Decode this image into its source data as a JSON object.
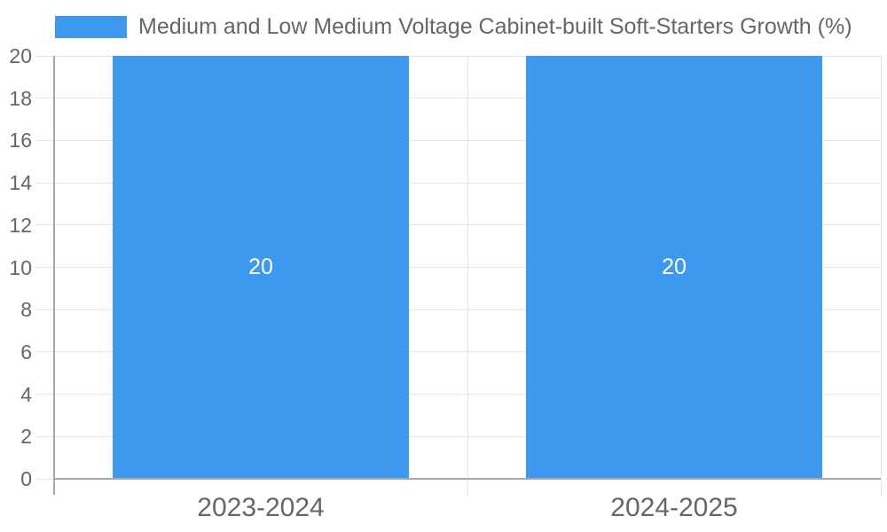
{
  "chart_data": {
    "type": "bar",
    "title": "",
    "legend": {
      "label": "Medium and Low Medium Voltage Cabinet-built Soft-Starters Growth (%)",
      "position": "top-left"
    },
    "categories": [
      "2023-2024",
      "2024-2025"
    ],
    "series": [
      {
        "name": "Medium and Low Medium Voltage Cabinet-built Soft-Starters Growth (%)",
        "values": [
          20,
          20
        ]
      }
    ],
    "value_labels": [
      "20",
      "20"
    ],
    "xlabel": "",
    "ylabel": "",
    "ylim": [
      0,
      20
    ],
    "yticks": [
      0,
      2,
      4,
      6,
      8,
      10,
      12,
      14,
      16,
      18,
      20
    ],
    "grid": true,
    "legend_visible": true,
    "colors": {
      "bar": "#3C99EE",
      "grid_line": "#E4E4E4",
      "axis_line": "#A8A8A8",
      "tick_label": "#666666",
      "value_label": "#FFFFFF",
      "background": "#FFFFFF"
    }
  }
}
